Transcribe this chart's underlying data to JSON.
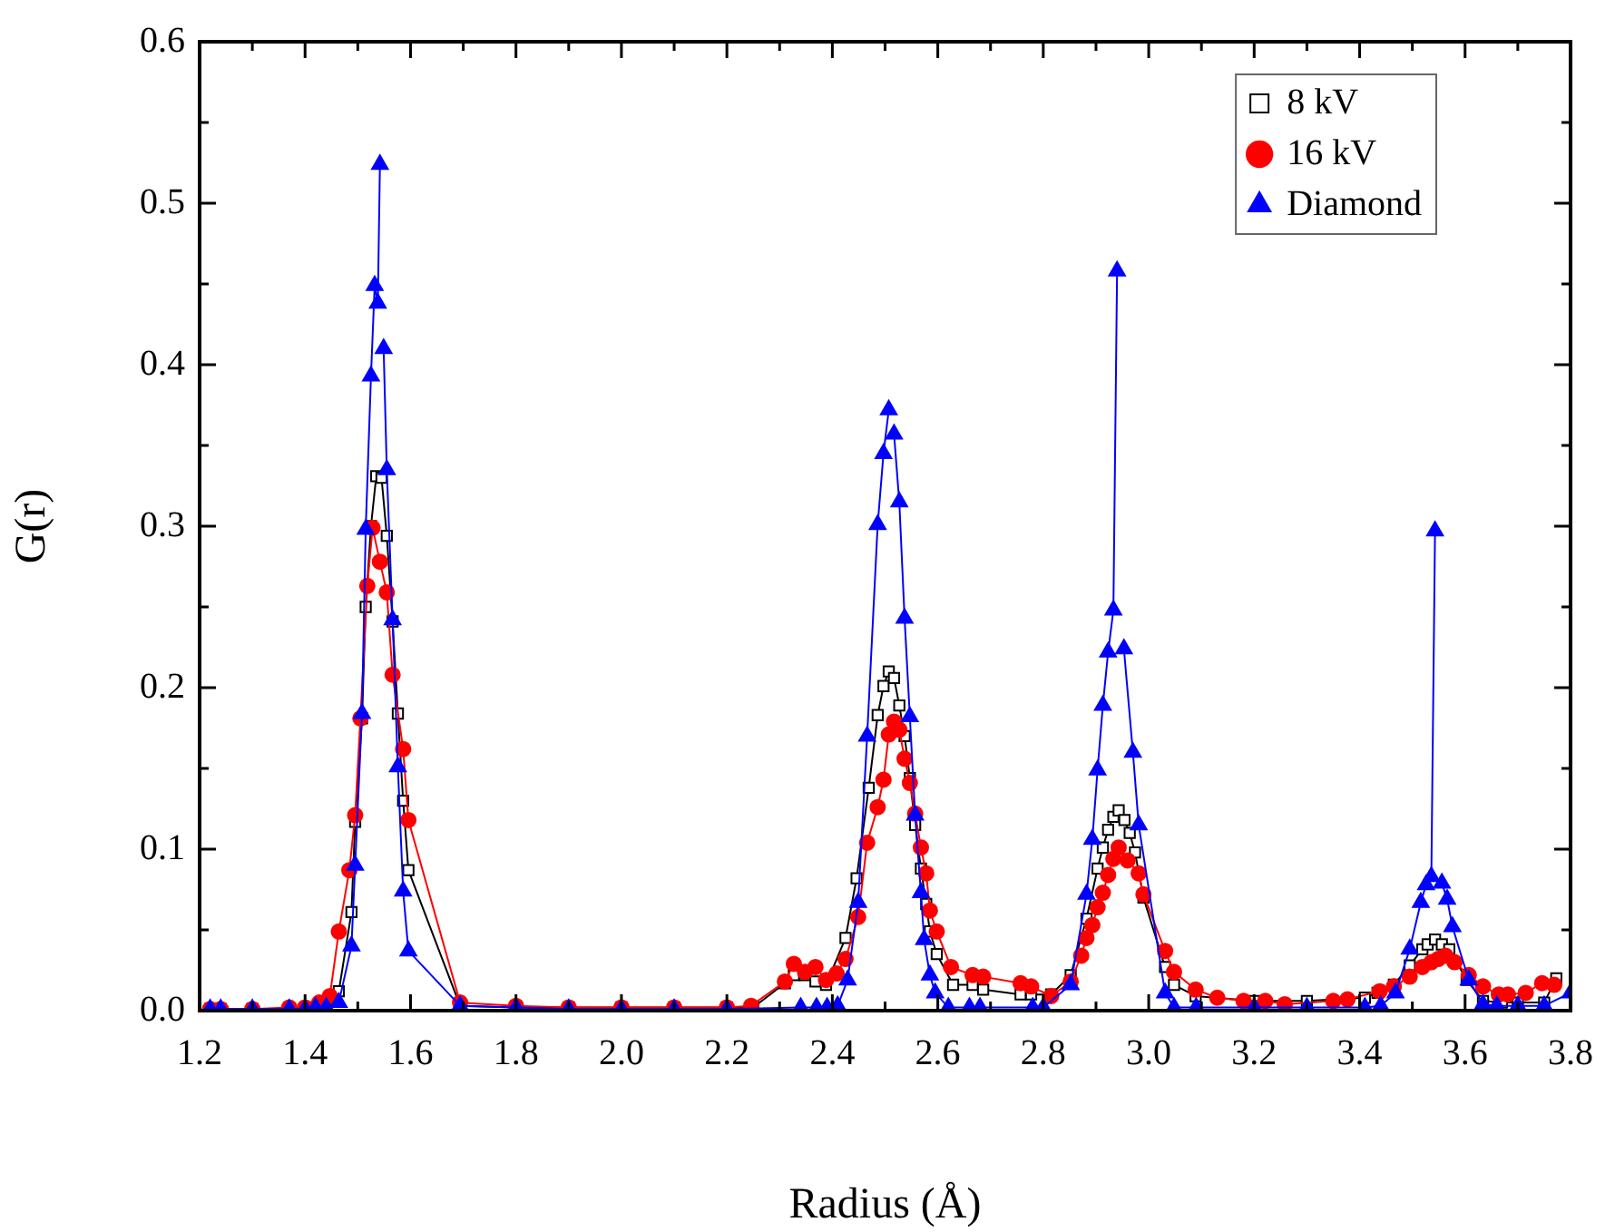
{
  "chart_data": {
    "type": "line",
    "xlabel": "Radius (Å)",
    "ylabel": "G(r)",
    "xlim": [
      1.2,
      3.8
    ],
    "ylim": [
      0,
      0.6
    ],
    "xticks": [
      1.2,
      1.4,
      1.6,
      1.8,
      {
        "value": 2.0,
        "label": "2.0"
      },
      2.2,
      2.4,
      2.6,
      2.8,
      {
        "value": 3.0,
        "label": "3.0"
      },
      3.2,
      3.4,
      3.6,
      3.8
    ],
    "yticks": [
      {
        "value": 0,
        "label": "0.0"
      },
      0.1,
      0.2,
      0.3,
      0.4,
      0.5,
      0.6
    ],
    "grid": false,
    "legend": "top right",
    "line_style": "solid",
    "series": [
      {
        "name": "8 kV",
        "color": "#000000",
        "marker": "square",
        "x": [
          1.22,
          1.24,
          1.3,
          1.37,
          1.4,
          1.42,
          1.44,
          1.464,
          1.488,
          1.495,
          1.508,
          1.515,
          1.525,
          1.535,
          1.545,
          1.555,
          1.566,
          1.576,
          1.586,
          1.596,
          1.694,
          1.8,
          1.9,
          2.0,
          2.1,
          2.2,
          2.25,
          2.31,
          2.327,
          2.348,
          2.368,
          2.388,
          2.425,
          2.446,
          2.469,
          2.486,
          2.497,
          2.507,
          2.517,
          2.527,
          2.537,
          2.547,
          2.557,
          2.568,
          2.578,
          2.585,
          2.598,
          2.629,
          2.666,
          2.686,
          2.757,
          2.777,
          2.815,
          2.852,
          2.882,
          2.903,
          2.913,
          2.923,
          2.933,
          2.943,
          2.954,
          2.964,
          2.974,
          2.99,
          3.031,
          3.048,
          3.089,
          3.2,
          3.3,
          3.41,
          3.434,
          3.465,
          3.495,
          3.519,
          3.529,
          3.543,
          3.556,
          3.57,
          3.603,
          3.634,
          3.67,
          3.7,
          3.75,
          3.773
        ],
        "values": [
          0.001,
          0.001,
          0.001,
          0.001,
          0.001,
          0.002,
          0.004,
          0.012,
          0.061,
          0.117,
          0.181,
          0.25,
          0.3,
          0.331,
          0.33,
          0.294,
          0.241,
          0.184,
          0.13,
          0.087,
          0.003,
          0.002,
          0.002,
          0.002,
          0.002,
          0.002,
          0.002,
          0.017,
          0.022,
          0.022,
          0.018,
          0.016,
          0.045,
          0.082,
          0.138,
          0.183,
          0.201,
          0.21,
          0.206,
          0.189,
          0.17,
          0.144,
          0.115,
          0.088,
          0.066,
          0.049,
          0.035,
          0.016,
          0.016,
          0.013,
          0.01,
          0.01,
          0.01,
          0.022,
          0.057,
          0.088,
          0.101,
          0.112,
          0.12,
          0.124,
          0.118,
          0.11,
          0.098,
          0.07,
          0.027,
          0.016,
          0.009,
          0.006,
          0.006,
          0.008,
          0.011,
          0.016,
          0.028,
          0.038,
          0.041,
          0.044,
          0.041,
          0.038,
          0.019,
          0.006,
          0.005,
          0.005,
          0.005,
          0.02
        ]
      },
      {
        "name": "16 kV",
        "color": "#ff0000",
        "marker": "circle",
        "x": [
          1.22,
          1.24,
          1.3,
          1.37,
          1.4,
          1.427,
          1.447,
          1.464,
          1.484,
          1.495,
          1.505,
          1.518,
          1.528,
          1.542,
          1.555,
          1.566,
          1.586,
          1.596,
          1.694,
          1.8,
          1.9,
          2.0,
          2.1,
          2.2,
          2.246,
          2.31,
          2.327,
          2.348,
          2.368,
          2.388,
          2.408,
          2.425,
          2.449,
          2.466,
          2.486,
          2.497,
          2.507,
          2.517,
          2.527,
          2.537,
          2.547,
          2.557,
          2.568,
          2.578,
          2.585,
          2.598,
          2.625,
          2.666,
          2.686,
          2.757,
          2.777,
          2.815,
          2.852,
          2.872,
          2.882,
          2.893,
          2.903,
          2.913,
          2.923,
          2.933,
          2.943,
          2.96,
          2.981,
          2.99,
          3.031,
          3.048,
          3.089,
          3.13,
          3.18,
          3.221,
          3.258,
          3.35,
          3.377,
          3.438,
          3.465,
          3.495,
          3.519,
          3.536,
          3.549,
          3.563,
          3.58,
          3.607,
          3.634,
          3.664,
          3.681,
          3.715,
          3.746,
          3.769
        ],
        "values": [
          0.001,
          0.001,
          0.001,
          0.002,
          0.002,
          0.005,
          0.009,
          0.049,
          0.087,
          0.121,
          0.181,
          0.263,
          0.299,
          0.278,
          0.259,
          0.208,
          0.162,
          0.118,
          0.005,
          0.003,
          0.002,
          0.002,
          0.002,
          0.002,
          0.003,
          0.018,
          0.029,
          0.024,
          0.027,
          0.019,
          0.023,
          0.032,
          0.058,
          0.104,
          0.126,
          0.143,
          0.171,
          0.179,
          0.174,
          0.156,
          0.141,
          0.122,
          0.101,
          0.085,
          0.062,
          0.049,
          0.027,
          0.022,
          0.021,
          0.017,
          0.015,
          0.009,
          0.018,
          0.034,
          0.045,
          0.053,
          0.064,
          0.073,
          0.084,
          0.094,
          0.101,
          0.093,
          0.085,
          0.072,
          0.037,
          0.024,
          0.013,
          0.008,
          0.006,
          0.006,
          0.004,
          0.006,
          0.007,
          0.012,
          0.015,
          0.021,
          0.027,
          0.03,
          0.032,
          0.034,
          0.03,
          0.022,
          0.015,
          0.01,
          0.01,
          0.011,
          0.017,
          0.016
        ]
      },
      {
        "name": "Diamond",
        "color": "#0000ff",
        "marker": "triangle",
        "x": [
          1.22,
          1.24,
          1.3,
          1.37,
          1.4,
          1.42,
          1.44,
          1.464,
          1.488,
          1.495,
          1.508,
          1.515,
          1.525,
          1.532,
          1.538,
          1.542,
          1.546,
          1.549,
          1.555,
          1.566,
          1.576,
          1.586,
          1.596,
          1.694,
          1.8,
          1.9,
          2.0,
          2.1,
          2.2,
          2.34,
          2.37,
          2.39,
          2.41,
          2.429,
          2.449,
          2.466,
          2.486,
          2.497,
          2.507,
          2.512,
          2.517,
          2.527,
          2.537,
          2.547,
          2.557,
          2.568,
          2.574,
          2.585,
          2.595,
          2.62,
          2.66,
          2.68,
          2.78,
          2.8,
          2.852,
          2.882,
          2.893,
          2.903,
          2.913,
          2.923,
          2.933,
          2.94,
          2.946,
          2.953,
          2.97,
          2.981,
          3.031,
          3.048,
          3.09,
          3.2,
          3.3,
          3.41,
          3.44,
          3.468,
          3.495,
          3.516,
          3.526,
          3.536,
          3.543,
          3.549,
          3.556,
          3.566,
          3.576,
          3.607,
          3.634,
          3.66,
          3.7,
          3.75,
          3.8
        ],
        "values": [
          0.001,
          0.001,
          0.001,
          0.001,
          0.001,
          0.002,
          0.002,
          0.005,
          0.04,
          0.09,
          0.184,
          0.298,
          0.393,
          0.449,
          0.438,
          0.524,
          null,
          0.41,
          0.335,
          0.242,
          0.151,
          0.074,
          0.037,
          0.003,
          0.002,
          0.001,
          0.001,
          0.001,
          0.001,
          0.002,
          0.002,
          0.002,
          0.003,
          0.019,
          0.067,
          0.17,
          0.301,
          0.345,
          0.372,
          null,
          0.357,
          0.315,
          0.243,
          0.182,
          0.121,
          0.073,
          0.044,
          0.022,
          0.011,
          0.002,
          0.002,
          0.002,
          0.002,
          0.002,
          0.016,
          0.072,
          0.106,
          0.149,
          0.189,
          0.222,
          0.248,
          0.458,
          null,
          0.224,
          0.16,
          0.115,
          0.011,
          0.002,
          0.002,
          0.002,
          0.002,
          0.002,
          0.003,
          0.011,
          0.038,
          0.067,
          0.078,
          0.083,
          0.297,
          null,
          0.079,
          0.069,
          0.052,
          0.019,
          0.004,
          0.003,
          0.003,
          0.003,
          0.011
        ]
      }
    ]
  }
}
